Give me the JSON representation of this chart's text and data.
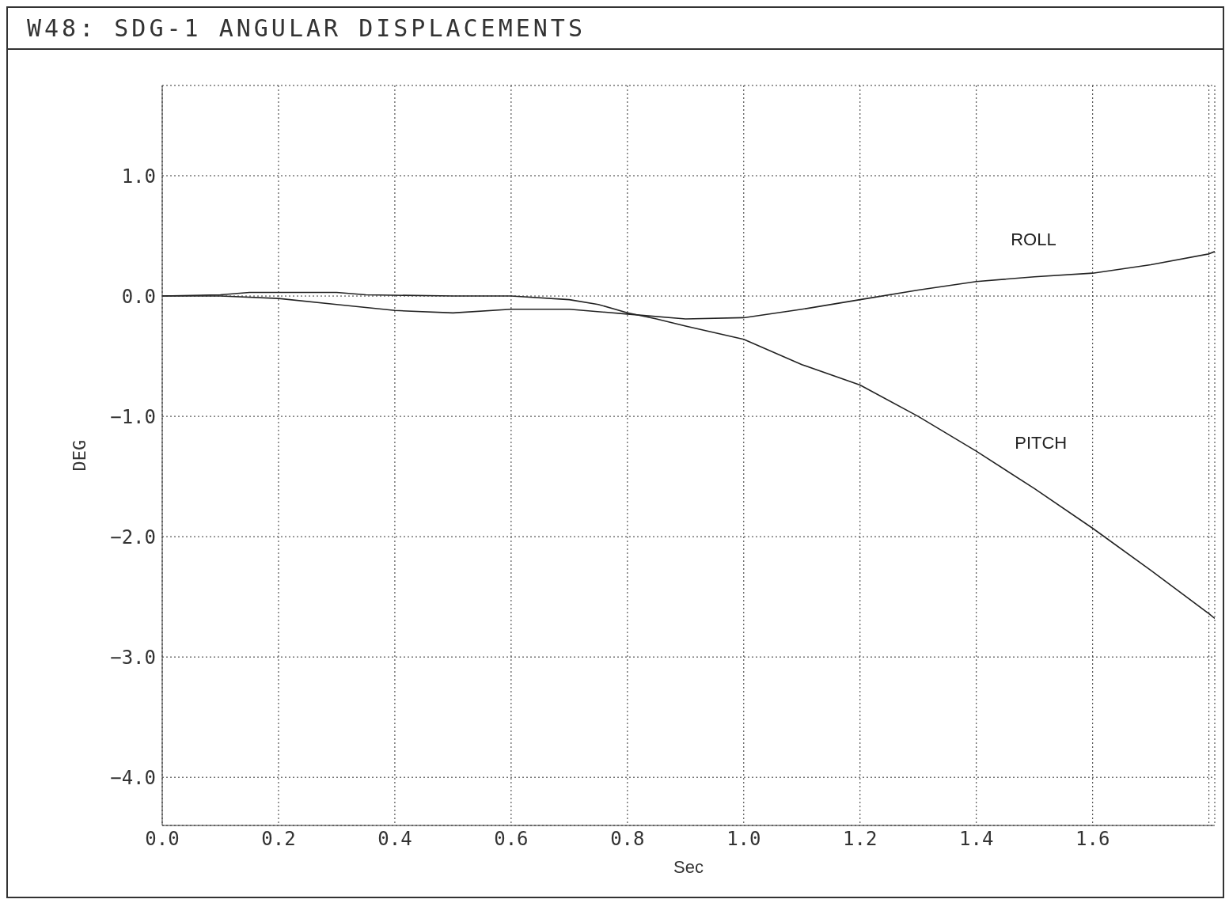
{
  "chart_data": {
    "type": "line",
    "title": "W48: SDG-1 ANGULAR DISPLACEMENTS",
    "xlabel": "Sec",
    "ylabel": "DEG",
    "xlim": [
      0,
      1.81
    ],
    "ylim": [
      -4.4,
      1.75
    ],
    "xticks": [
      {
        "value": 0,
        "label": "0.0"
      },
      {
        "value": 0.2,
        "label": "0.2"
      },
      {
        "value": 0.4,
        "label": "0.4"
      },
      {
        "value": 0.6,
        "label": "0.6"
      },
      {
        "value": 0.8,
        "label": "0.8"
      },
      {
        "value": 1.0,
        "label": "1.0"
      },
      {
        "value": 1.2,
        "label": "1.2"
      },
      {
        "value": 1.4,
        "label": "1.4"
      },
      {
        "value": 1.6,
        "label": "1.6"
      },
      {
        "value": 1.8,
        "label": null
      }
    ],
    "yticks": [
      {
        "value": -4,
        "label": "−4.0"
      },
      {
        "value": -3,
        "label": "−3.0"
      },
      {
        "value": -2,
        "label": "−2.0"
      },
      {
        "value": -1,
        "label": "−1.0"
      },
      {
        "value": 0,
        "label": "0.0"
      },
      {
        "value": 1,
        "label": "1.0"
      }
    ],
    "grid": true,
    "marker": "none",
    "line_style": "solid",
    "series": [
      {
        "name": "ROLL",
        "color": "#222222",
        "x": [
          0,
          0.1,
          0.2,
          0.3,
          0.4,
          0.5,
          0.6,
          0.7,
          0.8,
          0.9,
          1.0,
          1.1,
          1.2,
          1.3,
          1.4,
          1.5,
          1.6,
          1.7,
          1.8,
          1.81
        ],
        "values": [
          0,
          0,
          -0.02,
          -0.07,
          -0.12,
          -0.14,
          -0.11,
          -0.11,
          -0.15,
          -0.19,
          -0.18,
          -0.11,
          -0.03,
          0.05,
          0.12,
          0.16,
          0.19,
          0.26,
          0.35,
          0.37
        ]
      },
      {
        "name": "PITCH",
        "color": "#222222",
        "x": [
          0,
          0.1,
          0.15,
          0.3,
          0.35,
          0.5,
          0.6,
          0.7,
          0.75,
          0.8,
          0.85,
          0.9,
          1.0,
          1.1,
          1.2,
          1.3,
          1.4,
          1.5,
          1.6,
          1.7,
          1.8,
          1.81
        ],
        "values": [
          0,
          0.01,
          0.03,
          0.03,
          0.01,
          0,
          0,
          -0.03,
          -0.07,
          -0.14,
          -0.19,
          -0.25,
          -0.36,
          -0.57,
          -0.74,
          -1.0,
          -1.29,
          -1.6,
          -1.93,
          -2.28,
          -2.64,
          -2.68
        ]
      }
    ]
  }
}
